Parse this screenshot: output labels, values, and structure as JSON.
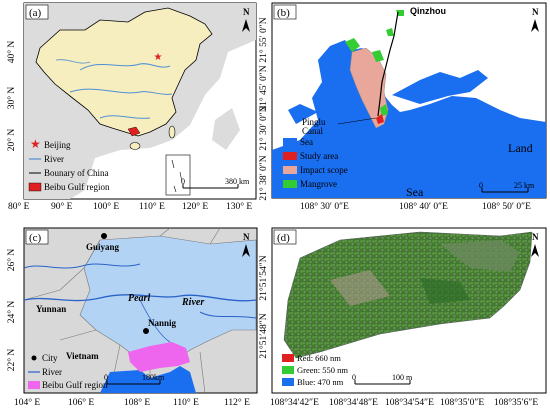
{
  "panel_a": {
    "label": "(a)",
    "legend": [
      "Beijing",
      "River",
      "Bounary of China",
      "Beibu Gulf region"
    ],
    "scale_label": "380 km",
    "scale_zero": "0",
    "north": "N",
    "x_ticks": [
      "80° E",
      "90° E",
      "100° E",
      "110° E",
      "120° E",
      "130° E"
    ],
    "y_ticks": [
      "40° N",
      "30° N",
      "20° N"
    ],
    "colors": {
      "china": "#f7eec0",
      "land": "#dcdcdc",
      "sea": "#ffffff",
      "river": "#4f8fd6",
      "beibu": "#e02020",
      "beijing": "#d22"
    }
  },
  "panel_b": {
    "label": "(b)",
    "place": "Qinzhou",
    "canal_label": "Pinglu\nCanal",
    "canal_line1": "Pinglu",
    "canal_line2": "Canal",
    "legend": [
      "Sea",
      "Study area",
      "Impact scope",
      "Mangrove"
    ],
    "land": "Land",
    "sea": "Sea",
    "scale_label": "25 km",
    "scale_zero": "0",
    "north": "N",
    "x_ticks": [
      "108° 30′ 0″E",
      "108° 40′ 0″E",
      "108° 50′ 0″E"
    ],
    "y_ticks": [
      "21° 55′ 0″N",
      "21° 45′ 0″N",
      "21° 30′ 0″N",
      "21° 38′ 0″N"
    ],
    "colors": {
      "sea": "#1a6ef0",
      "study": "#e02020",
      "impact": "#e8a79a",
      "mangrove": "#33cc33"
    }
  },
  "panel_c": {
    "label": "(c)",
    "cities": [
      "Guiyang",
      "Nannig"
    ],
    "regions": [
      "Yunnan",
      "Vietnam"
    ],
    "river_words": [
      "Pearl",
      "River"
    ],
    "legend": [
      "City",
      "River",
      "Beibu Gulf region"
    ],
    "scale_label": "180km",
    "scale_zero": "0",
    "north": "N",
    "x_ticks": [
      "104° E",
      "106° E",
      "108° E",
      "110° E",
      "112° E"
    ],
    "y_ticks": [
      "26° N",
      "24° N",
      "22° N"
    ],
    "colors": {
      "land": "#d8d8d8",
      "sea": "#1a6ef0",
      "river": "#2a62c8",
      "beibu": "#ee66ee",
      "bg": "#b3d3f5"
    }
  },
  "panel_d": {
    "label": "(d)",
    "legend": [
      "Red: 660 nm",
      "Green: 550 nm",
      "Blue: 470 nm"
    ],
    "scale_label": "100 m",
    "scale_zero": "0",
    "north": "N",
    "x_ticks": [
      "108°34′42″E",
      "108°34′48″E",
      "108°34′54″E",
      "108°35′0″E",
      "108°35′6″E"
    ],
    "y_ticks": [
      "21°51′54″N",
      "21°51′48″N"
    ],
    "colors": {
      "red": "#e02020",
      "green": "#33cc33",
      "blue": "#1a6ef0"
    }
  }
}
